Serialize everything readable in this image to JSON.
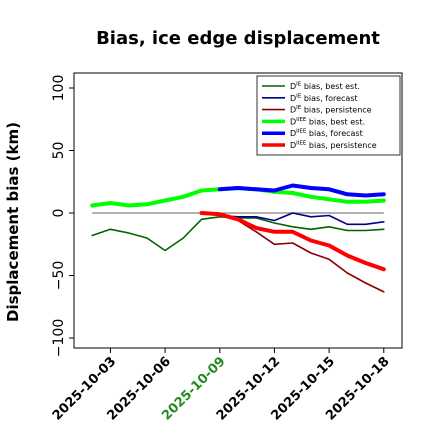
{
  "chart_data": {
    "type": "line",
    "title": "Bias, ice edge displacement",
    "xlabel": "",
    "ylabel": "Displacement bias (km)",
    "ylim": [
      -108,
      112
    ],
    "yticks": [
      -100,
      -50,
      0,
      50,
      100
    ],
    "yticklabels": [
      "−100",
      "−50",
      "0",
      "50",
      "100"
    ],
    "xlim": [
      "2025-10-01",
      "2025-10-19"
    ],
    "xticks": [
      "2025-10-03",
      "2025-10-06",
      "2025-10-09",
      "2025-10-12",
      "2025-10-15",
      "2025-10-18"
    ],
    "highlighted_xtick": "2025-10-09",
    "highlight_color": "#228b22",
    "zero_line": true,
    "grid": false,
    "legend_position": "top-right",
    "series": [
      {
        "name": "D^IE bias, best est.",
        "name_base": "D",
        "name_sup": "IE",
        "name_rest": " bias, best est.",
        "color": "#006400",
        "width": 1.6,
        "x": [
          "2025-10-02",
          "2025-10-03",
          "2025-10-04",
          "2025-10-05",
          "2025-10-06",
          "2025-10-07",
          "2025-10-08",
          "2025-10-09",
          "2025-10-10",
          "2025-10-11",
          "2025-10-12",
          "2025-10-13",
          "2025-10-14",
          "2025-10-15",
          "2025-10-16",
          "2025-10-17",
          "2025-10-18"
        ],
        "y": [
          -18,
          -13,
          -16,
          -20,
          -30,
          -20,
          -5,
          -3,
          -4,
          -4,
          -8,
          -11,
          -13,
          -11,
          -14,
          -14,
          -13
        ]
      },
      {
        "name": "D^IE bias, forecast",
        "name_base": "D",
        "name_sup": "IE",
        "name_rest": " bias, forecast",
        "color": "#00008b",
        "width": 1.6,
        "x": [
          "2025-10-09",
          "2025-10-10",
          "2025-10-11",
          "2025-10-12",
          "2025-10-13",
          "2025-10-14",
          "2025-10-15",
          "2025-10-16",
          "2025-10-17",
          "2025-10-18"
        ],
        "y": [
          -2,
          -3,
          -3,
          -6,
          0,
          -3,
          -2,
          -9,
          -9,
          -7
        ]
      },
      {
        "name": "D^IE bias, persistence",
        "name_base": "D",
        "name_sup": "IE",
        "name_rest": " bias, persistence",
        "color": "#8b0000",
        "width": 1.6,
        "x": [
          "2025-10-08",
          "2025-10-09",
          "2025-10-10",
          "2025-10-11",
          "2025-10-12",
          "2025-10-13",
          "2025-10-14",
          "2025-10-15",
          "2025-10-16",
          "2025-10-17",
          "2025-10-18"
        ],
        "y": [
          0,
          -2,
          -6,
          -15,
          -25,
          -24,
          -32,
          -37,
          -48,
          -56,
          -63
        ]
      },
      {
        "name": "D^IIEE bias, best est.",
        "name_base": "D",
        "name_sup": "IIEE",
        "name_rest": " bias, best est.",
        "color": "#00ff00",
        "width": 4,
        "x": [
          "2025-10-02",
          "2025-10-03",
          "2025-10-04",
          "2025-10-05",
          "2025-10-06",
          "2025-10-07",
          "2025-10-08",
          "2025-10-09",
          "2025-10-10",
          "2025-10-11",
          "2025-10-12",
          "2025-10-13",
          "2025-10-14",
          "2025-10-15",
          "2025-10-16",
          "2025-10-17",
          "2025-10-18"
        ],
        "y": [
          6,
          8,
          6,
          7,
          10,
          13,
          18,
          19,
          20,
          19,
          17,
          16,
          13,
          11,
          9,
          9,
          10
        ]
      },
      {
        "name": "D^IIEE bias, forecast",
        "name_base": "D",
        "name_sup": "IIEE",
        "name_rest": " bias, forecast",
        "color": "#0000ff",
        "width": 4,
        "x": [
          "2025-10-09",
          "2025-10-10",
          "2025-10-11",
          "2025-10-12",
          "2025-10-13",
          "2025-10-14",
          "2025-10-15",
          "2025-10-16",
          "2025-10-17",
          "2025-10-18"
        ],
        "y": [
          19,
          20,
          19,
          18,
          22,
          20,
          19,
          15,
          14,
          15
        ]
      },
      {
        "name": "D^IIEE bias, persistence",
        "name_base": "D",
        "name_sup": "IIEE",
        "name_rest": " bias, persistence",
        "color": "#ff0000",
        "width": 4,
        "x": [
          "2025-10-08",
          "2025-10-09",
          "2025-10-10",
          "2025-10-11",
          "2025-10-12",
          "2025-10-13",
          "2025-10-14",
          "2025-10-15",
          "2025-10-16",
          "2025-10-17",
          "2025-10-18"
        ],
        "y": [
          0,
          -1,
          -5,
          -12,
          -15,
          -15,
          -22,
          -26,
          -34,
          -40,
          -45
        ]
      }
    ]
  }
}
